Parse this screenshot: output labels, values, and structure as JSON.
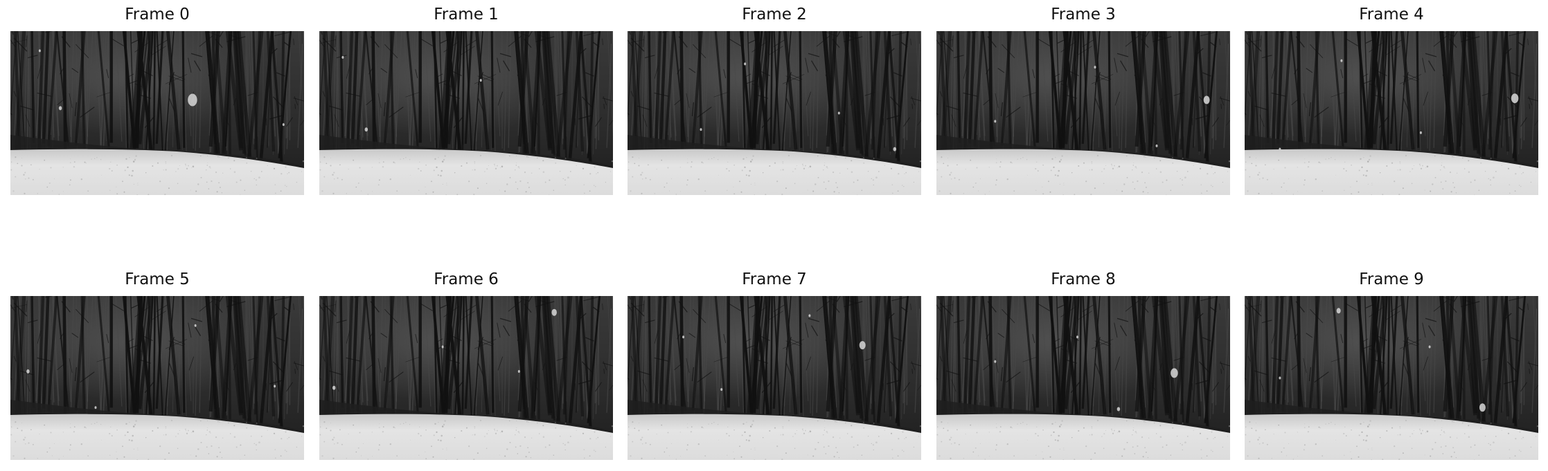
{
  "figure": {
    "frames": [
      {
        "title": "Frame 0",
        "flakes": [
          [
            0.62,
            0.42,
            9
          ],
          [
            0.17,
            0.47,
            3
          ],
          [
            0.93,
            0.57,
            2
          ],
          [
            0.1,
            0.12,
            2
          ]
        ]
      },
      {
        "title": "Frame 1",
        "flakes": [
          [
            0.16,
            0.6,
            3
          ],
          [
            0.64,
            0.77,
            4
          ],
          [
            0.08,
            0.16,
            2
          ],
          [
            0.55,
            0.3,
            2
          ]
        ]
      },
      {
        "title": "Frame 2",
        "flakes": [
          [
            0.91,
            0.72,
            3
          ],
          [
            0.25,
            0.6,
            2
          ],
          [
            0.72,
            0.5,
            2
          ],
          [
            0.4,
            0.2,
            2
          ]
        ]
      },
      {
        "title": "Frame 3",
        "flakes": [
          [
            0.92,
            0.42,
            6
          ],
          [
            0.54,
            0.22,
            2
          ],
          [
            0.2,
            0.55,
            2
          ],
          [
            0.75,
            0.7,
            2
          ]
        ]
      },
      {
        "title": "Frame 4",
        "flakes": [
          [
            0.92,
            0.41,
            7
          ],
          [
            0.33,
            0.18,
            2
          ],
          [
            0.6,
            0.62,
            2
          ],
          [
            0.12,
            0.72,
            2
          ]
        ]
      },
      {
        "title": "Frame 5",
        "flakes": [
          [
            0.06,
            0.46,
            3
          ],
          [
            0.63,
            0.18,
            2
          ],
          [
            0.29,
            0.68,
            2
          ],
          [
            0.9,
            0.55,
            2
          ]
        ]
      },
      {
        "title": "Frame 6",
        "flakes": [
          [
            0.8,
            0.1,
            5
          ],
          [
            0.05,
            0.56,
            3
          ],
          [
            0.42,
            0.31,
            2
          ],
          [
            0.68,
            0.46,
            2
          ]
        ]
      },
      {
        "title": "Frame 7",
        "flakes": [
          [
            0.8,
            0.3,
            6
          ],
          [
            0.62,
            0.12,
            2
          ],
          [
            0.32,
            0.57,
            2
          ],
          [
            0.19,
            0.25,
            2
          ]
        ]
      },
      {
        "title": "Frame 8",
        "flakes": [
          [
            0.81,
            0.47,
            7
          ],
          [
            0.62,
            0.69,
            3
          ],
          [
            0.2,
            0.4,
            2
          ],
          [
            0.48,
            0.25,
            2
          ]
        ]
      },
      {
        "title": "Frame 9",
        "flakes": [
          [
            0.81,
            0.68,
            6
          ],
          [
            0.32,
            0.09,
            4
          ],
          [
            0.63,
            0.31,
            2
          ],
          [
            0.12,
            0.5,
            2
          ]
        ]
      }
    ]
  }
}
